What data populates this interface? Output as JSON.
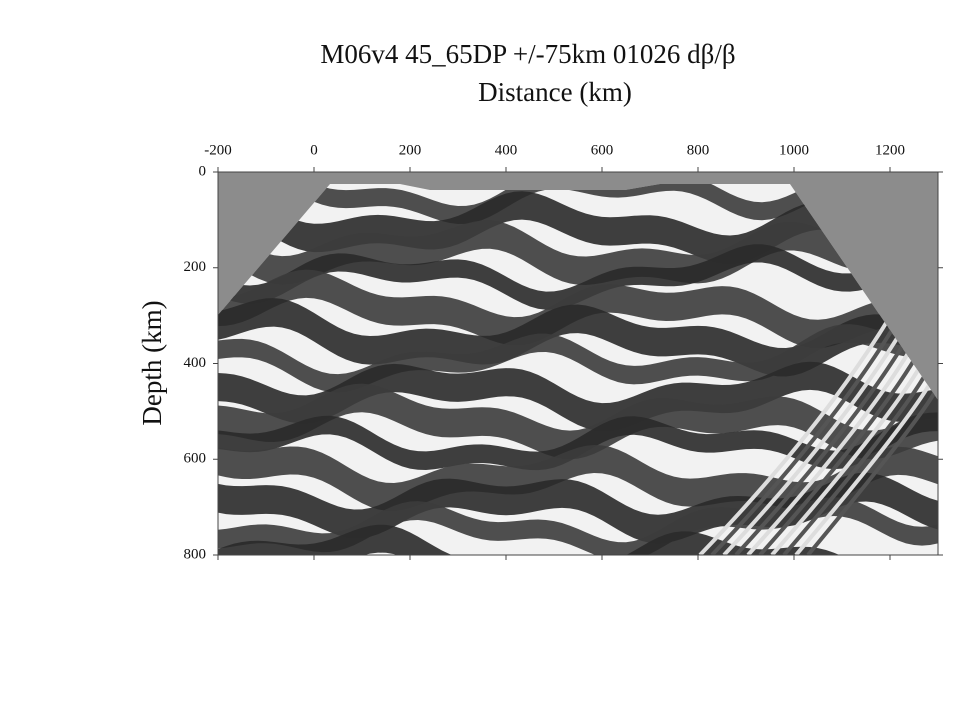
{
  "chart_data": {
    "type": "image",
    "title": "M06v4 45_65DP +/-75km 01026 dβ/β",
    "xlabel": "Distance (km)",
    "ylabel": "Depth (km)",
    "xlim": [
      -200,
      1300
    ],
    "ylim": [
      0,
      800
    ],
    "y_inverted": true,
    "xticks": [
      -200,
      0,
      200,
      400,
      600,
      800,
      1000,
      1200
    ],
    "yticks": [
      0,
      200,
      400,
      600,
      800
    ]
  }
}
